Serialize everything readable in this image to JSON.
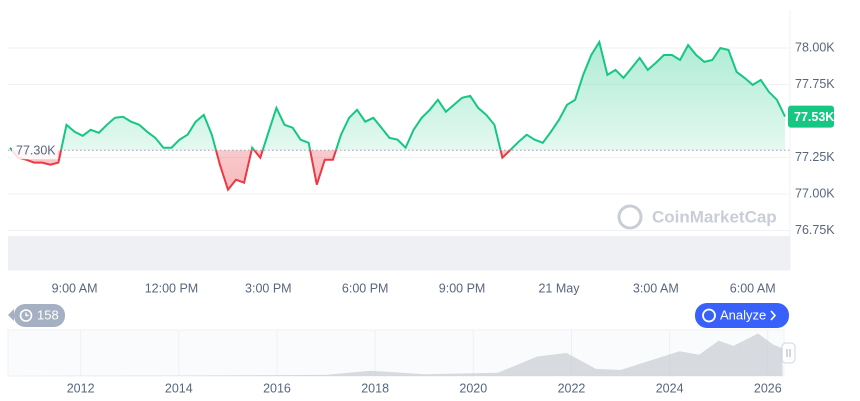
{
  "chart_data": {
    "type": "line",
    "categories": [
      null,
      null,
      null,
      null,
      null,
      null,
      null,
      null,
      "9:00 AM",
      null,
      null,
      null,
      null,
      null,
      null,
      null,
      null,
      null,
      null,
      null,
      "12:00 PM",
      null,
      null,
      null,
      null,
      null,
      null,
      null,
      null,
      null,
      null,
      null,
      "3:00 PM",
      null,
      null,
      null,
      null,
      null,
      null,
      null,
      null,
      null,
      null,
      null,
      "6:00 PM",
      null,
      null,
      null,
      null,
      null,
      null,
      null,
      null,
      null,
      null,
      null,
      "9:00 PM",
      null,
      null,
      null,
      null,
      null,
      null,
      null,
      null,
      null,
      null,
      null,
      "21 May",
      null,
      null,
      null,
      null,
      null,
      null,
      null,
      null,
      null,
      null,
      null,
      "3:00 AM",
      null,
      null,
      null,
      null,
      null,
      null,
      null,
      null,
      null,
      null,
      null,
      "6:00 AM",
      null,
      null,
      null,
      null
    ],
    "values": [
      77317,
      77249,
      77235,
      77215,
      77215,
      77201,
      77215,
      77474,
      77426,
      77399,
      77440,
      77419,
      77474,
      77522,
      77529,
      77495,
      77474,
      77426,
      77385,
      77317,
      77317,
      77372,
      77406,
      77495,
      77542,
      77406,
      77201,
      77030,
      77098,
      77078,
      77317,
      77249,
      77419,
      77590,
      77474,
      77454,
      77372,
      77351,
      77064,
      77235,
      77235,
      77406,
      77522,
      77577,
      77495,
      77522,
      77454,
      77385,
      77372,
      77317,
      77440,
      77522,
      77577,
      77645,
      77563,
      77611,
      77659,
      77672,
      77590,
      77542,
      77474,
      77249,
      77303,
      77358,
      77406,
      77372,
      77351,
      77426,
      77508,
      77611,
      77645,
      77816,
      77952,
      78041,
      77816,
      77850,
      77795,
      77863,
      77932,
      77850,
      77898,
      77952,
      77952,
      77918,
      78020,
      77952,
      77905,
      77918,
      78000,
      77986,
      77836,
      77795,
      77747,
      77781,
      77699,
      77645,
      77530
    ],
    "up_color": "#16c784",
    "down_color": "#ea3943",
    "reference_line": {
      "value": 77300,
      "label": "77.30K"
    },
    "current_price": {
      "value": 77530,
      "label": "77.53K"
    },
    "ylim": [
      76480,
      78260
    ],
    "yticks": [
      {
        "value": 76750,
        "label": "76.75K"
      },
      {
        "value": 77000,
        "label": "77.00K"
      },
      {
        "value": 77250,
        "label": "77.25K"
      },
      {
        "value": 77750,
        "label": "77.75K"
      },
      {
        "value": 78000,
        "label": "78.00K"
      }
    ],
    "grid": true,
    "watermark": "CoinMarketCap",
    "overview": {
      "type": "area",
      "color": "#c8ccd3",
      "x": [
        2010.6,
        2013.9,
        2017,
        2017.9,
        2019,
        2020.5,
        2021.3,
        2021.9,
        2022.5,
        2023,
        2024.2,
        2024.6,
        2025,
        2025.3,
        2025.8,
        2026.1,
        2026.3
      ],
      "values": [
        0,
        1000,
        3000,
        15000,
        5000,
        9000,
        55000,
        65000,
        20000,
        17000,
        70000,
        60000,
        100000,
        85000,
        120000,
        90000,
        78000
      ],
      "xlim": [
        2010.52,
        2026.33
      ],
      "ylim": [
        0,
        130000
      ],
      "xticks": [
        2012,
        2014,
        2016,
        2018,
        2020,
        2022,
        2024,
        2026
      ]
    }
  },
  "ui": {
    "history_count": "158",
    "analyze": "Analyze"
  }
}
